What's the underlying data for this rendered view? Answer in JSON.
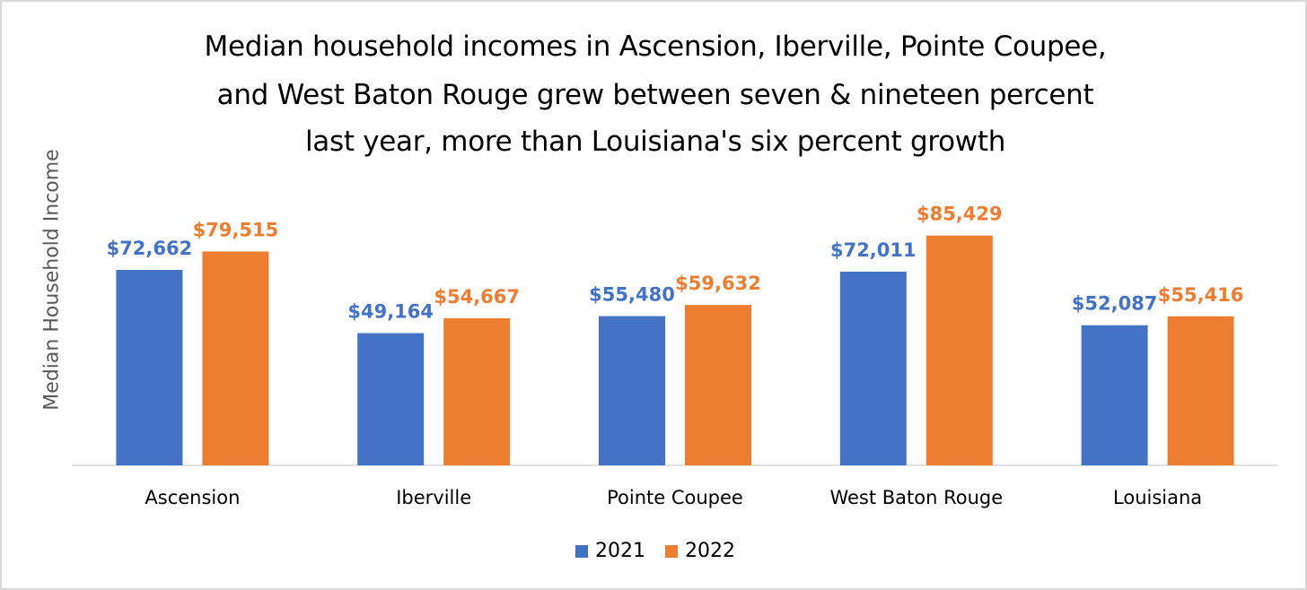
{
  "chart_data": {
    "type": "bar",
    "title_lines": [
      "Median household incomes in Ascension, Iberville, Pointe Coupee,",
      "and West Baton Rouge grew between seven & nineteen percent",
      "last year, more than Louisiana's six percent growth"
    ],
    "xlabel": "",
    "ylabel": "Median Household Income",
    "ylim": [
      0,
      100000
    ],
    "grid": false,
    "legend_position": "bottom",
    "categories": [
      "Ascension",
      "Iberville",
      "Pointe Coupee",
      "West Baton Rouge",
      "Louisiana"
    ],
    "series": [
      {
        "name": "2021",
        "color": "#4472C4",
        "values": [
          72662,
          49164,
          55480,
          72011,
          52087
        ],
        "labels": [
          "$72,662",
          "$49,164",
          "$55,480",
          "$72,011",
          "$52,087"
        ]
      },
      {
        "name": "2022",
        "color": "#ED7D31",
        "values": [
          79515,
          54667,
          59632,
          85429,
          55416
        ],
        "labels": [
          "$79,515",
          "$54,667",
          "$59,632",
          "$85,429",
          "$55,416"
        ]
      }
    ]
  }
}
